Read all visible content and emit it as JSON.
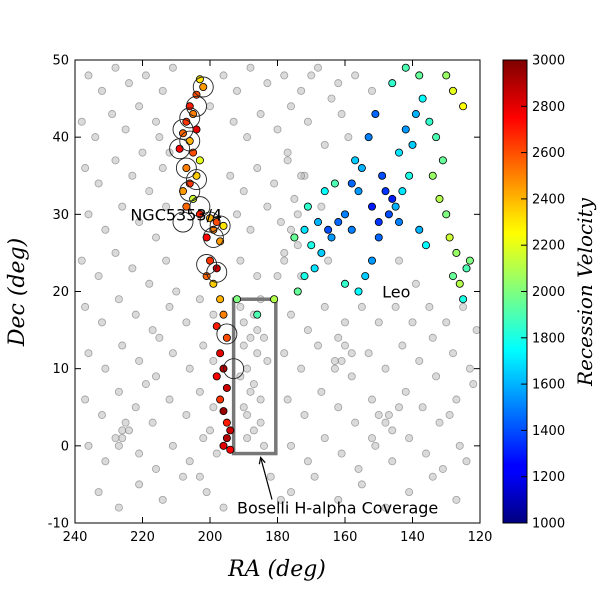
{
  "chart_data": {
    "type": "scatter",
    "title": "",
    "xlabel": "RA (deg)",
    "ylabel": "Dec (deg)",
    "xlim": [
      240,
      120
    ],
    "ylim": [
      -10,
      50
    ],
    "x_ticks": [
      "240",
      "220",
      "200",
      "180",
      "160",
      "140",
      "120"
    ],
    "y_ticks": [
      "-10",
      "0",
      "10",
      "20",
      "30",
      "40",
      "50"
    ],
    "grid": false,
    "colorbar": {
      "label": "Recession Velocity",
      "range": [
        1000,
        3000
      ],
      "ticks": [
        "1000",
        "1200",
        "1400",
        "1600",
        "1800",
        "2000",
        "2200",
        "2400",
        "2600",
        "2800",
        "3000"
      ],
      "colormap": "jet"
    },
    "annotations": [
      {
        "text": "NGC5353/4",
        "x": 210,
        "y": 30
      },
      {
        "text": "Leo",
        "x": 149,
        "y": 20
      },
      {
        "text": "Boselli H-alpha Coverage",
        "x": 192,
        "y": -8,
        "arrow_to": [
          185,
          -1.5
        ]
      }
    ],
    "rectangle": {
      "x0": 193,
      "x1": 180.5,
      "y0": -1,
      "y1": 19
    },
    "colored_points": [
      [
        203,
        47.5,
        2300
      ],
      [
        202,
        46.5,
        2450
      ],
      [
        204,
        45.5,
        2600
      ],
      [
        206,
        44,
        2700
      ],
      [
        205,
        43,
        2500
      ],
      [
        207,
        42,
        2650
      ],
      [
        204,
        41,
        2800
      ],
      [
        208,
        40.5,
        2550
      ],
      [
        206,
        39.5,
        2400
      ],
      [
        209,
        38.5,
        2750
      ],
      [
        205,
        38,
        2600
      ],
      [
        203,
        37,
        2200
      ],
      [
        207,
        36,
        2500
      ],
      [
        204,
        35,
        2350
      ],
      [
        206,
        34,
        2650
      ],
      [
        208,
        33,
        2450
      ],
      [
        205,
        32,
        2150
      ],
      [
        207,
        31,
        2550
      ],
      [
        203,
        30,
        2700
      ],
      [
        200,
        29.5,
        2400
      ],
      [
        198,
        29,
        2600
      ],
      [
        196,
        28.5,
        2300
      ],
      [
        199,
        28,
        2500
      ],
      [
        201,
        27,
        2750
      ],
      [
        197,
        26.5,
        2450
      ],
      [
        200,
        24,
        2650
      ],
      [
        198,
        23,
        2850
      ],
      [
        201,
        22,
        2550
      ],
      [
        199,
        21,
        2350
      ],
      [
        197,
        19,
        2400
      ],
      [
        196,
        17,
        2500
      ],
      [
        198,
        15.5,
        2700
      ],
      [
        195,
        14,
        2600
      ],
      [
        197,
        12,
        2800
      ],
      [
        196,
        10,
        2900
      ],
      [
        198,
        9,
        2750
      ],
      [
        195,
        7.5,
        2850
      ],
      [
        197,
        6,
        2650
      ],
      [
        196,
        4.5,
        2950
      ],
      [
        195,
        3,
        2700
      ],
      [
        194,
        2,
        2850
      ],
      [
        195,
        1,
        2900
      ],
      [
        196,
        0,
        2800
      ],
      [
        194,
        -0.5,
        2750
      ],
      [
        192,
        19,
        2000
      ],
      [
        181,
        19,
        2100
      ],
      [
        186,
        17,
        1900
      ],
      [
        175,
        27,
        1950
      ],
      [
        170,
        26,
        1800
      ],
      [
        172,
        28,
        1700
      ],
      [
        168,
        29,
        1600
      ],
      [
        171,
        31,
        1850
      ],
      [
        166,
        33,
        1750
      ],
      [
        163,
        34,
        1900
      ],
      [
        160,
        30,
        1500
      ],
      [
        162,
        29,
        1450
      ],
      [
        164,
        27,
        1550
      ],
      [
        167,
        25,
        1650
      ],
      [
        169,
        23,
        1700
      ],
      [
        172,
        22,
        1800
      ],
      [
        174,
        20,
        1950
      ],
      [
        165,
        28,
        1400
      ],
      [
        158,
        28,
        1500
      ],
      [
        156,
        33,
        1550
      ],
      [
        155,
        36,
        1600
      ],
      [
        157,
        37,
        1650
      ],
      [
        153,
        40,
        1500
      ],
      [
        151,
        43,
        1450
      ],
      [
        149,
        35,
        1400
      ],
      [
        148,
        33,
        1350
      ],
      [
        146,
        32,
        1300
      ],
      [
        147,
        30,
        1400
      ],
      [
        144,
        29,
        1500
      ],
      [
        145,
        31,
        1600
      ],
      [
        143,
        33,
        1700
      ],
      [
        141,
        35,
        1800
      ],
      [
        140,
        39,
        1650
      ],
      [
        142,
        41,
        1550
      ],
      [
        139,
        43,
        1600
      ],
      [
        137,
        45,
        1750
      ],
      [
        135,
        42,
        1850
      ],
      [
        133,
        40,
        1900
      ],
      [
        131,
        37,
        1950
      ],
      [
        134,
        35,
        2050
      ],
      [
        132,
        32,
        2100
      ],
      [
        130,
        30,
        2000
      ],
      [
        129,
        27,
        2150
      ],
      [
        127,
        25,
        2050
      ],
      [
        128,
        22,
        1950
      ],
      [
        126,
        21,
        2100
      ],
      [
        124,
        23,
        1900
      ],
      [
        125,
        19,
        1800
      ],
      [
        123,
        24,
        2000
      ],
      [
        138,
        28,
        1600
      ],
      [
        136,
        26,
        1750
      ],
      [
        150,
        27,
        1450
      ],
      [
        152,
        24,
        1550
      ],
      [
        154,
        22,
        1650
      ],
      [
        156,
        20,
        1750
      ],
      [
        160,
        21,
        1850
      ],
      [
        146,
        47,
        1850
      ],
      [
        142,
        49,
        1900
      ],
      [
        138,
        48,
        1950
      ],
      [
        128,
        46,
        2200
      ],
      [
        125,
        44,
        2250
      ],
      [
        130,
        48,
        2050
      ],
      [
        144,
        38,
        1700
      ],
      [
        150,
        29,
        1350
      ],
      [
        152,
        31,
        1300
      ],
      [
        158,
        34,
        1450
      ]
    ],
    "ring_points": [
      [
        202,
        46.5
      ],
      [
        204,
        44
      ],
      [
        206,
        42.5
      ],
      [
        208,
        41
      ],
      [
        206,
        39.5
      ],
      [
        209,
        38.5
      ],
      [
        207,
        36
      ],
      [
        204,
        34.5
      ],
      [
        206,
        33
      ],
      [
        203,
        31
      ],
      [
        208,
        29
      ],
      [
        200,
        29
      ],
      [
        197,
        28.5
      ],
      [
        199,
        27
      ],
      [
        201,
        23.5
      ],
      [
        198,
        22.5
      ],
      [
        195,
        14.5
      ],
      [
        193,
        10
      ]
    ],
    "gray_points": [
      [
        236,
        48
      ],
      [
        232,
        46
      ],
      [
        228,
        49
      ],
      [
        224,
        47
      ],
      [
        219,
        48
      ],
      [
        214,
        46
      ],
      [
        211,
        49
      ],
      [
        196,
        48
      ],
      [
        192,
        46
      ],
      [
        188,
        49
      ],
      [
        183,
        47
      ],
      [
        178,
        48
      ],
      [
        173,
        46
      ],
      [
        168,
        49
      ],
      [
        162,
        47
      ],
      [
        157,
        48
      ],
      [
        152,
        46
      ],
      [
        238,
        42
      ],
      [
        234,
        40
      ],
      [
        229,
        43
      ],
      [
        225,
        41
      ],
      [
        221,
        44
      ],
      [
        216,
        42
      ],
      [
        212,
        38
      ],
      [
        193,
        42
      ],
      [
        189,
        40
      ],
      [
        185,
        43
      ],
      [
        180,
        41
      ],
      [
        176,
        44
      ],
      [
        171,
        42
      ],
      [
        166,
        39
      ],
      [
        161,
        43
      ],
      [
        237,
        36
      ],
      [
        233,
        34
      ],
      [
        228,
        37
      ],
      [
        223,
        35
      ],
      [
        218,
        33
      ],
      [
        214,
        36
      ],
      [
        194,
        35
      ],
      [
        190,
        33
      ],
      [
        186,
        36
      ],
      [
        181,
        34
      ],
      [
        177,
        37
      ],
      [
        172,
        35
      ],
      [
        167,
        31
      ],
      [
        236,
        30
      ],
      [
        231,
        28
      ],
      [
        226,
        31
      ],
      [
        221,
        29
      ],
      [
        216,
        27
      ],
      [
        213,
        31
      ],
      [
        192,
        30
      ],
      [
        188,
        28
      ],
      [
        183,
        31
      ],
      [
        179,
        29
      ],
      [
        174,
        26
      ],
      [
        238,
        24
      ],
      [
        233,
        22
      ],
      [
        228,
        25
      ],
      [
        223,
        23
      ],
      [
        218,
        21
      ],
      [
        213,
        24
      ],
      [
        191,
        24
      ],
      [
        186,
        22
      ],
      [
        178,
        24
      ],
      [
        173,
        22
      ],
      [
        165,
        24
      ],
      [
        237,
        18
      ],
      [
        232,
        16
      ],
      [
        227,
        19
      ],
      [
        222,
        17
      ],
      [
        217,
        15
      ],
      [
        212,
        18
      ],
      [
        207,
        16
      ],
      [
        203,
        19
      ],
      [
        199,
        17
      ],
      [
        185,
        19
      ],
      [
        176,
        17
      ],
      [
        171,
        15
      ],
      [
        166,
        18
      ],
      [
        160,
        16
      ],
      [
        155,
        18
      ],
      [
        150,
        16
      ],
      [
        145,
        18
      ],
      [
        140,
        16
      ],
      [
        135,
        18
      ],
      [
        130,
        16
      ],
      [
        125,
        18
      ],
      [
        236,
        12
      ],
      [
        231,
        10
      ],
      [
        226,
        13
      ],
      [
        221,
        11
      ],
      [
        216,
        9
      ],
      [
        211,
        12
      ],
      [
        206,
        10
      ],
      [
        202,
        13
      ],
      [
        199,
        11
      ],
      [
        178,
        12
      ],
      [
        173,
        10
      ],
      [
        168,
        13
      ],
      [
        163,
        11
      ],
      [
        158,
        9
      ],
      [
        153,
        12
      ],
      [
        148,
        10
      ],
      [
        143,
        13
      ],
      [
        138,
        11
      ],
      [
        133,
        9
      ],
      [
        128,
        12
      ],
      [
        123,
        10
      ],
      [
        237,
        6
      ],
      [
        232,
        4
      ],
      [
        227,
        7
      ],
      [
        222,
        5
      ],
      [
        217,
        3
      ],
      [
        212,
        6
      ],
      [
        207,
        4
      ],
      [
        203,
        7
      ],
      [
        199,
        5
      ],
      [
        177,
        6
      ],
      [
        172,
        4
      ],
      [
        167,
        7
      ],
      [
        162,
        5
      ],
      [
        157,
        3
      ],
      [
        152,
        6
      ],
      [
        147,
        4
      ],
      [
        142,
        7
      ],
      [
        137,
        5
      ],
      [
        132,
        3
      ],
      [
        127,
        6
      ],
      [
        236,
        0
      ],
      [
        231,
        -2
      ],
      [
        226,
        1
      ],
      [
        221,
        -1
      ],
      [
        216,
        -3
      ],
      [
        211,
        0
      ],
      [
        206,
        -2
      ],
      [
        202,
        1
      ],
      [
        198,
        -1
      ],
      [
        176,
        0
      ],
      [
        171,
        -2
      ],
      [
        166,
        1
      ],
      [
        161,
        -1
      ],
      [
        156,
        -3
      ],
      [
        151,
        0
      ],
      [
        146,
        -2
      ],
      [
        141,
        1
      ],
      [
        136,
        -1
      ],
      [
        131,
        -3
      ],
      [
        126,
        0
      ],
      [
        233,
        -6
      ],
      [
        227,
        -8
      ],
      [
        221,
        -5
      ],
      [
        214,
        -7
      ],
      [
        208,
        -4
      ],
      [
        201,
        -6
      ],
      [
        196,
        -8
      ],
      [
        176,
        -6
      ],
      [
        169,
        -4
      ],
      [
        162,
        -7
      ],
      [
        155,
        -5
      ],
      [
        148,
        -8
      ],
      [
        141,
        -6
      ],
      [
        134,
        -4
      ],
      [
        127,
        -7
      ],
      [
        190,
        16
      ],
      [
        188,
        14
      ],
      [
        186,
        12
      ],
      [
        189,
        10
      ],
      [
        187,
        8
      ],
      [
        185,
        6
      ],
      [
        189,
        4
      ],
      [
        187,
        2
      ],
      [
        184,
        0
      ],
      [
        190,
        13
      ],
      [
        186,
        15
      ],
      [
        188,
        7
      ],
      [
        191,
        9
      ],
      [
        183,
        11
      ],
      [
        185,
        3
      ],
      [
        190,
        5
      ],
      [
        187,
        17
      ],
      [
        184,
        14
      ],
      [
        189,
        1
      ],
      [
        191,
        18
      ],
      [
        226,
        2
      ],
      [
        228,
        1
      ],
      [
        225,
        3
      ],
      [
        227,
        0
      ],
      [
        224,
        2
      ],
      [
        162,
        14
      ],
      [
        160,
        13
      ],
      [
        158,
        12
      ],
      [
        161,
        11
      ],
      [
        163,
        10
      ],
      [
        175,
        32
      ],
      [
        174,
        30
      ],
      [
        176,
        28
      ],
      [
        173,
        35
      ],
      [
        177,
        38
      ],
      [
        178,
        25
      ],
      [
        180,
        22
      ],
      [
        150,
        4
      ],
      [
        148,
        3
      ],
      [
        146,
        2
      ],
      [
        152,
        1
      ],
      [
        144,
        5
      ],
      [
        200,
        44
      ],
      [
        215,
        40
      ],
      [
        220,
        38
      ],
      [
        210,
        20
      ],
      [
        215,
        14
      ],
      [
        219,
        8
      ],
      [
        200,
        2
      ],
      [
        203,
        -4
      ],
      [
        182,
        -4
      ],
      [
        179,
        -7
      ],
      [
        159,
        40
      ],
      [
        164,
        45
      ],
      [
        170,
        48
      ],
      [
        144,
        24
      ],
      [
        139,
        21
      ],
      [
        134,
        14
      ],
      [
        129,
        4
      ],
      [
        124,
        -2
      ],
      [
        122,
        8
      ],
      [
        121,
        15
      ]
    ]
  }
}
